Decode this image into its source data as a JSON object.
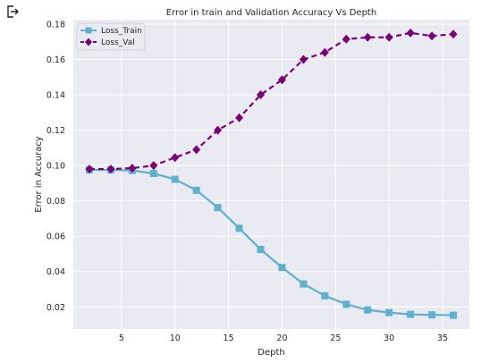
{
  "toolbar": {
    "exit_icon": "exit-icon"
  },
  "chart_data": {
    "type": "line",
    "title": "Error in train and Validation Accuracy Vs Depth",
    "xlabel": "Depth",
    "ylabel": "Error in Accuracy",
    "xlim": [
      0.5,
      37.5
    ],
    "ylim": [
      0.0075,
      0.1825
    ],
    "xticks": [
      5,
      10,
      15,
      20,
      25,
      30,
      35
    ],
    "yticks": [
      0.02,
      0.04,
      0.06,
      0.08,
      0.1,
      0.12,
      0.14,
      0.16,
      0.18
    ],
    "grid": true,
    "background": "#eaeaf2",
    "legend_position": "top-left",
    "x": [
      2,
      4,
      6,
      8,
      10,
      12,
      14,
      16,
      18,
      20,
      22,
      24,
      26,
      28,
      30,
      32,
      34,
      36
    ],
    "series": [
      {
        "name": "Loss_Train",
        "color": "#5fb0ce",
        "marker": "square",
        "line_style": "solid",
        "values": [
          0.0975,
          0.0975,
          0.0972,
          0.0955,
          0.0922,
          0.086,
          0.0762,
          0.0645,
          0.0525,
          0.0423,
          0.033,
          0.0263,
          0.0215,
          0.0183,
          0.0168,
          0.0158,
          0.0155,
          0.0153
        ]
      },
      {
        "name": "Loss_Val",
        "color": "#7a0078",
        "marker": "diamond",
        "line_style": "dashed",
        "values": [
          0.098,
          0.098,
          0.0985,
          0.1,
          0.1045,
          0.109,
          0.12,
          0.127,
          0.14,
          0.1485,
          0.16,
          0.164,
          0.1715,
          0.1725,
          0.1725,
          0.175,
          0.1733,
          0.1743
        ]
      }
    ]
  }
}
